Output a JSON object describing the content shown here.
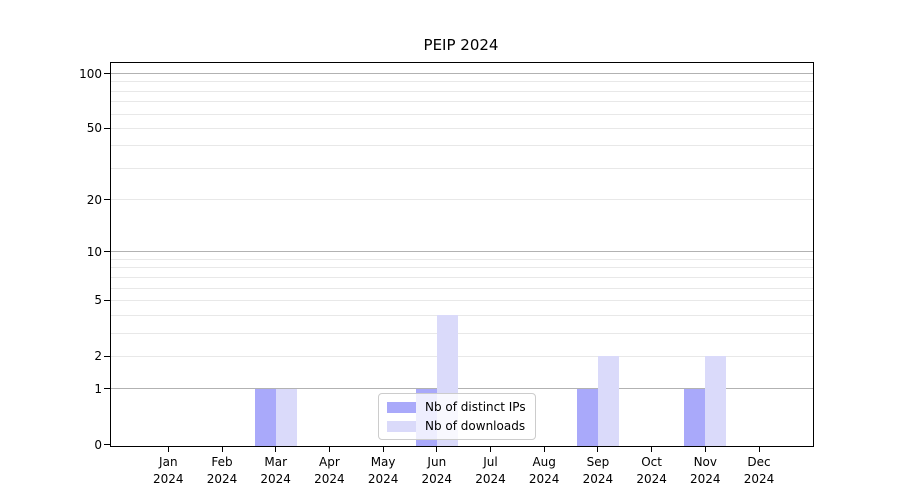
{
  "chart_data": {
    "type": "bar",
    "title": "PEIP 2024",
    "categories": [
      "Jan",
      "Feb",
      "Mar",
      "Apr",
      "May",
      "Jun",
      "Jul",
      "Aug",
      "Sep",
      "Oct",
      "Nov",
      "Dec"
    ],
    "year_label": "2024",
    "series": [
      {
        "name": "Nb of distinct IPs",
        "color": "#a9a9fa",
        "values": [
          0,
          0,
          1,
          0,
          0,
          1,
          0,
          0,
          1,
          0,
          1,
          0
        ]
      },
      {
        "name": "Nb of downloads",
        "color": "#dadafa",
        "values": [
          0,
          0,
          1,
          0,
          0,
          4,
          0,
          0,
          2,
          0,
          2,
          0
        ]
      }
    ],
    "y_axis": {
      "scale": "log(1+v)",
      "tick_labels": [
        "0",
        "1",
        "2",
        "5",
        "10",
        "20",
        "50",
        "100"
      ],
      "tick_values": [
        0,
        1,
        2,
        5,
        10,
        20,
        50,
        100
      ],
      "major_gridline_values": [
        1,
        10,
        100
      ],
      "minor_gridline_values": [
        2,
        3,
        4,
        5,
        6,
        7,
        8,
        9,
        20,
        30,
        40,
        50,
        60,
        70,
        80,
        90
      ],
      "ylim": [
        0,
        100
      ]
    },
    "legend_position": "lower center",
    "grid": "horizontal"
  },
  "colors": {
    "background": "#ffffff",
    "axis": "#000000",
    "text": "#000000",
    "major_grid": "#b2b2b2",
    "minor_grid": "#e8e8e8",
    "legend_border": "#cccccc"
  }
}
